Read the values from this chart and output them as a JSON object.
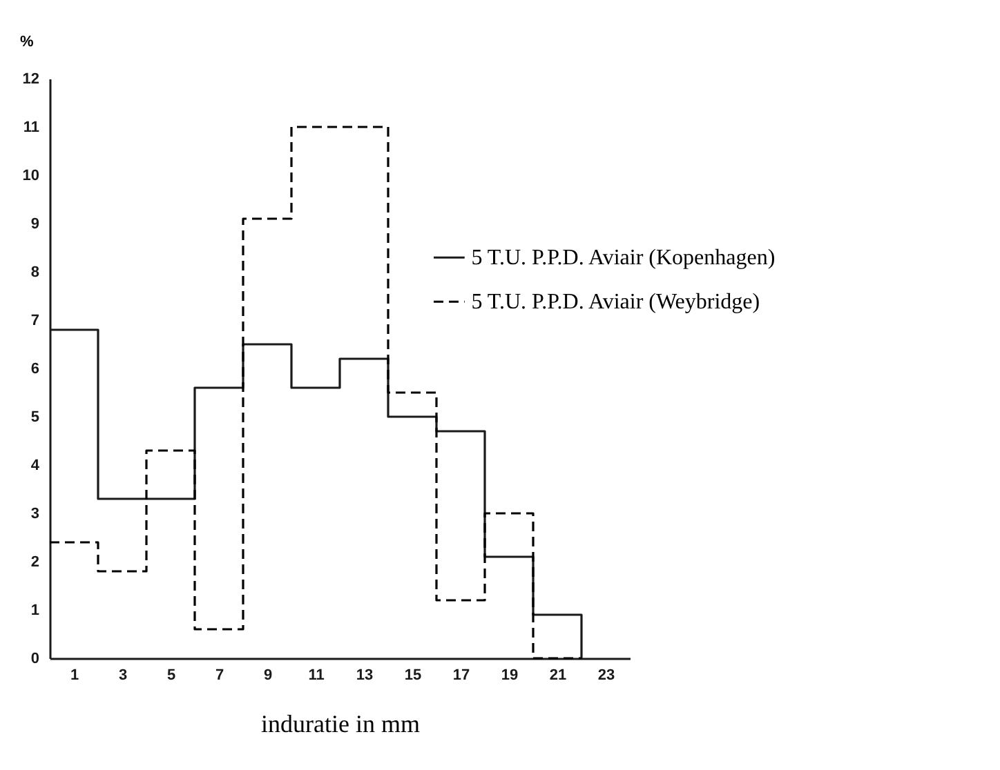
{
  "chart_data": {
    "type": "step",
    "xlabel": "induratie in mm",
    "ylabel": "%",
    "x": [
      0,
      2,
      4,
      6,
      8,
      10,
      12,
      14,
      16,
      18,
      20,
      22
    ],
    "series": [
      {
        "name": "5 T.U. P.P.D. Aviair (Kopenhagen)",
        "color": "#1a1a1a",
        "line_style": "solid",
        "values": [
          6.8,
          3.3,
          3.3,
          5.6,
          6.5,
          5.6,
          6.2,
          5.0,
          4.7,
          2.1,
          0.9,
          0
        ]
      },
      {
        "name": "5 T.U. P.P.D. Aviair (Weybridge)",
        "color": "#000000",
        "line_style": "dashed",
        "values": [
          2.4,
          1.8,
          4.3,
          0.6,
          9.1,
          11.0,
          11.0,
          5.5,
          1.2,
          3.0,
          0,
          0
        ]
      }
    ],
    "xlim": [
      0,
      24
    ],
    "xticks": [
      1,
      3,
      5,
      7,
      9,
      11,
      13,
      15,
      17,
      19,
      21,
      23
    ],
    "ylim": [
      0,
      12
    ],
    "yticks": [
      0,
      1,
      2,
      3,
      4,
      5,
      6,
      7,
      8,
      9,
      10,
      11,
      12
    ],
    "grid": false,
    "legend": "top right",
    "marker": "none"
  }
}
